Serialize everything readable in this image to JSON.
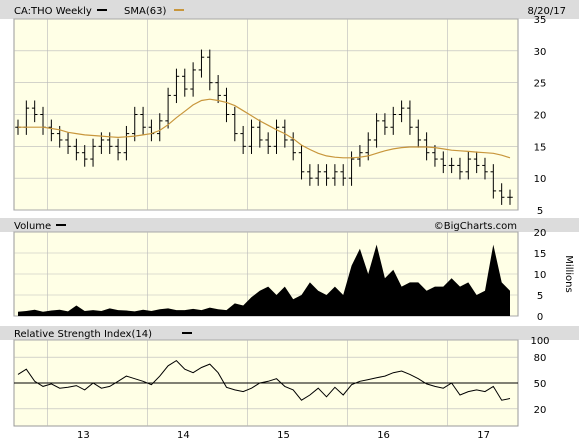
{
  "header": {
    "symbol_label": "CA:THO Weekly",
    "sma_label": "SMA(63)",
    "date": "8/20/17"
  },
  "panels": {
    "price": {
      "y_ticks": [
        5,
        10,
        15,
        20,
        25,
        30,
        35
      ]
    },
    "volume": {
      "title": "Volume",
      "watermark": "©BigCharts.com",
      "unit_label": "Millions",
      "y_ticks": [
        0,
        5,
        10,
        15,
        20
      ]
    },
    "rsi": {
      "title": "Relative Strength Index(14)",
      "y_ticks": [
        20,
        50,
        80,
        100
      ]
    }
  },
  "x_axis": {
    "labels": [
      "13",
      "14",
      "15",
      "16",
      "17"
    ]
  },
  "colors": {
    "panel_bg": "#ffffe6",
    "header_bg": "#dcdcdc",
    "grid": "#b9b9b9",
    "price": "#000000",
    "sma": "#c8963c",
    "volume": "#000000"
  },
  "chart_data": [
    {
      "type": "line",
      "title": "CA:THO Weekly",
      "x": [
        "2012-09",
        "2012-10",
        "2012-11",
        "2012-12",
        "2013-01",
        "2013-02",
        "2013-03",
        "2013-04",
        "2013-05",
        "2013-06",
        "2013-07",
        "2013-08",
        "2013-09",
        "2013-10",
        "2013-11",
        "2013-12",
        "2014-01",
        "2014-02",
        "2014-03",
        "2014-04",
        "2014-05",
        "2014-06",
        "2014-07",
        "2014-08",
        "2014-09",
        "2014-10",
        "2014-11",
        "2014-12",
        "2015-01",
        "2015-02",
        "2015-03",
        "2015-04",
        "2015-05",
        "2015-06",
        "2015-07",
        "2015-08",
        "2015-09",
        "2015-10",
        "2015-11",
        "2015-12",
        "2016-01",
        "2016-02",
        "2016-03",
        "2016-04",
        "2016-05",
        "2016-06",
        "2016-07",
        "2016-08",
        "2016-09",
        "2016-10",
        "2016-11",
        "2016-12",
        "2017-01",
        "2017-02",
        "2017-03",
        "2017-04",
        "2017-05",
        "2017-06",
        "2017-07",
        "2017-08"
      ],
      "series": [
        {
          "name": "CA:THO Weekly",
          "values": [
            18,
            21,
            20,
            18,
            17,
            16,
            15,
            14,
            13,
            15,
            16,
            15,
            14,
            17,
            20,
            18,
            17,
            19,
            23,
            26,
            24,
            27,
            29,
            25,
            23,
            20,
            17,
            15,
            18,
            16,
            15,
            18,
            16,
            14,
            11,
            10,
            11,
            10,
            11,
            10,
            13,
            14,
            16,
            19,
            18,
            20,
            21,
            18,
            16,
            14,
            13,
            12,
            12,
            11,
            13,
            12,
            11,
            8,
            7,
            7
          ]
        },
        {
          "name": "SMA(63)",
          "values": [
            18,
            18,
            18,
            18,
            17.8,
            17.6,
            17.2,
            17,
            16.8,
            16.7,
            16.6,
            16.5,
            16.4,
            16.5,
            16.6,
            16.8,
            17,
            17.5,
            18.4,
            19.5,
            20.5,
            21.5,
            22.2,
            22.4,
            22.2,
            21.9,
            21.4,
            20.6,
            19.8,
            19,
            18.3,
            17.6,
            17,
            16.2,
            15.2,
            14.5,
            13.9,
            13.5,
            13.3,
            13.2,
            13.2,
            13.3,
            13.5,
            13.9,
            14.3,
            14.6,
            14.8,
            14.9,
            14.9,
            14.9,
            14.8,
            14.6,
            14.4,
            14.3,
            14.2,
            14.1,
            14,
            13.9,
            13.6,
            13.2
          ]
        }
      ],
      "ylim": [
        5,
        35
      ],
      "y_ticks": [
        5,
        10,
        15,
        20,
        25,
        30,
        35
      ],
      "x_tick_labels": [
        "13",
        "14",
        "15",
        "16",
        "17"
      ],
      "grid": true
    },
    {
      "type": "bar",
      "title": "Volume",
      "ylabel": "Millions",
      "x": [
        "2012-09",
        "2012-10",
        "2012-11",
        "2012-12",
        "2013-01",
        "2013-02",
        "2013-03",
        "2013-04",
        "2013-05",
        "2013-06",
        "2013-07",
        "2013-08",
        "2013-09",
        "2013-10",
        "2013-11",
        "2013-12",
        "2014-01",
        "2014-02",
        "2014-03",
        "2014-04",
        "2014-05",
        "2014-06",
        "2014-07",
        "2014-08",
        "2014-09",
        "2014-10",
        "2014-11",
        "2014-12",
        "2015-01",
        "2015-02",
        "2015-03",
        "2015-04",
        "2015-05",
        "2015-06",
        "2015-07",
        "2015-08",
        "2015-09",
        "2015-10",
        "2015-11",
        "2015-12",
        "2016-01",
        "2016-02",
        "2016-03",
        "2016-04",
        "2016-05",
        "2016-06",
        "2016-07",
        "2016-08",
        "2016-09",
        "2016-10",
        "2016-11",
        "2016-12",
        "2017-01",
        "2017-02",
        "2017-03",
        "2017-04",
        "2017-05",
        "2017-06",
        "2017-07",
        "2017-08"
      ],
      "values": [
        1,
        1.2,
        1.5,
        1,
        1.3,
        1.5,
        1.1,
        2.5,
        1.2,
        1.4,
        1.2,
        1.8,
        1.4,
        1.3,
        1.1,
        1.5,
        1.2,
        1.6,
        1.8,
        1.4,
        1.4,
        1.7,
        1.4,
        2,
        1.6,
        1.4,
        3,
        2.5,
        4.5,
        6,
        7,
        5,
        7,
        4,
        5,
        8,
        6,
        5,
        7,
        5,
        12,
        16,
        10,
        17,
        9,
        11,
        7,
        8,
        8,
        6,
        7,
        7,
        9,
        7,
        8,
        5,
        6,
        17,
        8,
        6
      ],
      "ylim": [
        0,
        20
      ],
      "y_ticks": [
        0,
        5,
        10,
        15,
        20
      ],
      "grid": true
    },
    {
      "type": "line",
      "title": "Relative Strength Index(14)",
      "x": [
        "2012-09",
        "2012-10",
        "2012-11",
        "2012-12",
        "2013-01",
        "2013-02",
        "2013-03",
        "2013-04",
        "2013-05",
        "2013-06",
        "2013-07",
        "2013-08",
        "2013-09",
        "2013-10",
        "2013-11",
        "2013-12",
        "2014-01",
        "2014-02",
        "2014-03",
        "2014-04",
        "2014-05",
        "2014-06",
        "2014-07",
        "2014-08",
        "2014-09",
        "2014-10",
        "2014-11",
        "2014-12",
        "2015-01",
        "2015-02",
        "2015-03",
        "2015-04",
        "2015-05",
        "2015-06",
        "2015-07",
        "2015-08",
        "2015-09",
        "2015-10",
        "2015-11",
        "2015-12",
        "2016-01",
        "2016-02",
        "2016-03",
        "2016-04",
        "2016-05",
        "2016-06",
        "2016-07",
        "2016-08",
        "2016-09",
        "2016-10",
        "2016-11",
        "2016-12",
        "2017-01",
        "2017-02",
        "2017-03",
        "2017-04",
        "2017-05",
        "2017-06",
        "2017-07",
        "2017-08"
      ],
      "values": [
        60,
        66,
        52,
        46,
        49,
        44,
        45,
        47,
        42,
        50,
        44,
        46,
        52,
        58,
        55,
        52,
        48,
        58,
        70,
        76,
        66,
        62,
        68,
        72,
        62,
        45,
        42,
        40,
        44,
        50,
        52,
        55,
        46,
        42,
        30,
        36,
        44,
        34,
        45,
        36,
        48,
        52,
        54,
        56,
        58,
        62,
        64,
        60,
        55,
        49,
        46,
        44,
        50,
        36,
        40,
        42,
        40,
        46,
        30,
        32
      ],
      "ylim": [
        0,
        100
      ],
      "y_ticks": [
        20,
        50,
        80,
        100
      ],
      "reference_lines": [
        50
      ],
      "grid": true
    }
  ]
}
